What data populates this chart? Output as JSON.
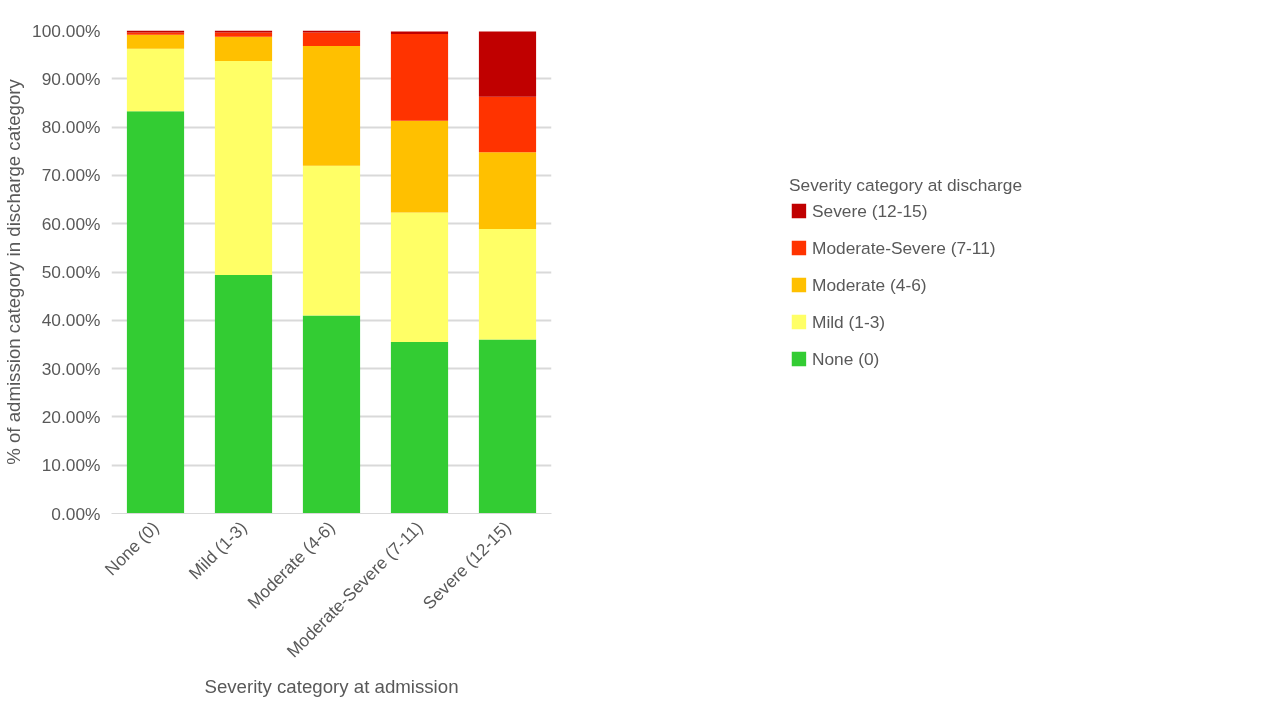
{
  "chart_data": {
    "type": "bar",
    "stacked": true,
    "xlabel": "Severity category at admission",
    "ylabel": "% of admission category in discharge category",
    "legend_title": "Severity category at discharge",
    "legend": "right",
    "grid": "y",
    "categories": [
      "None (0)",
      "Mild (1-3)",
      "Moderate (4-6)",
      "Moderate-Severe (7-11)",
      "Severe (12-15)"
    ],
    "ylim": [
      0,
      100
    ],
    "yticks": [
      {
        "value": 0,
        "label": "0.00%"
      },
      {
        "value": 10,
        "label": "10.00%"
      },
      {
        "value": 20,
        "label": "20.00%"
      },
      {
        "value": 30,
        "label": "30.00%"
      },
      {
        "value": 40,
        "label": "40.00%"
      },
      {
        "value": 50,
        "label": "50.00%"
      },
      {
        "value": 60,
        "label": "60.00%"
      },
      {
        "value": 70,
        "label": "70.00%"
      },
      {
        "value": 80,
        "label": "80.00%"
      },
      {
        "value": 90,
        "label": "90.00%"
      },
      {
        "value": 100,
        "label": "100.00%"
      }
    ],
    "series": [
      {
        "name": "None (0)",
        "color": "#33cc33",
        "values": [
          83.3,
          49.4,
          41.0,
          35.5,
          36.0
        ]
      },
      {
        "name": "Mild (1-3)",
        "color": "#ffff66",
        "values": [
          12.9,
          44.3,
          31.0,
          26.8,
          22.9
        ]
      },
      {
        "name": "Moderate (4-6)",
        "color": "#ffc000",
        "values": [
          2.9,
          5.0,
          24.8,
          19.0,
          15.9
        ]
      },
      {
        "name": "Moderate-Severe (7-11)",
        "color": "#ff3300",
        "values": [
          0.5,
          0.9,
          2.8,
          18.0,
          11.5
        ]
      },
      {
        "name": "Severe (12-15)",
        "color": "#c00000",
        "values": [
          0.4,
          0.4,
          0.4,
          0.5,
          13.5
        ]
      }
    ]
  }
}
